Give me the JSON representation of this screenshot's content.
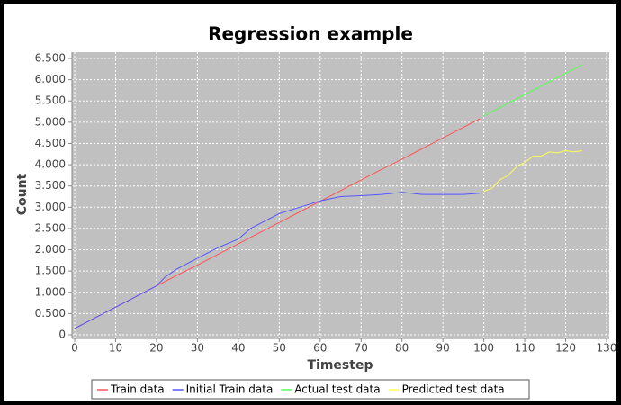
{
  "chart_data": {
    "type": "line",
    "title": "Regression example",
    "x_label": "Timestep",
    "y_label": "Count",
    "xlim": [
      0,
      130
    ],
    "xticks": [
      0,
      10,
      20,
      30,
      40,
      50,
      60,
      70,
      80,
      90,
      100,
      110,
      120,
      130
    ],
    "ylim": [
      0,
      6.5
    ],
    "yticks": [
      {
        "value": 0,
        "label": "0"
      },
      {
        "value": 0.5,
        "label": "0.500"
      },
      {
        "value": 1,
        "label": "1.000"
      },
      {
        "value": 1.5,
        "label": "1.500"
      },
      {
        "value": 2,
        "label": "2.000"
      },
      {
        "value": 2.5,
        "label": "2.500"
      },
      {
        "value": 3,
        "label": "3.000"
      },
      {
        "value": 3.5,
        "label": "3.500"
      },
      {
        "value": 4,
        "label": "4.000"
      },
      {
        "value": 4.5,
        "label": "4.500"
      },
      {
        "value": 5,
        "label": "5.000"
      },
      {
        "value": 5.5,
        "label": "5.500"
      },
      {
        "value": 6,
        "label": "6.000"
      },
      {
        "value": 6.5,
        "label": "6.500"
      }
    ],
    "grid": true,
    "series": [
      {
        "name": "Train data",
        "color": "#ff5555",
        "x": [
          0,
          5,
          10,
          15,
          20,
          25,
          30,
          35,
          40,
          45,
          50,
          55,
          60,
          65,
          70,
          75,
          80,
          85,
          90,
          95,
          99
        ],
        "values": [
          0.15,
          0.4,
          0.65,
          0.9,
          1.15,
          1.4,
          1.64,
          1.89,
          2.14,
          2.39,
          2.64,
          2.89,
          3.14,
          3.39,
          3.64,
          3.89,
          4.13,
          4.38,
          4.63,
          4.88,
          5.08
        ]
      },
      {
        "name": "Initial Train data",
        "color": "#5555ff",
        "x": [
          0,
          5,
          10,
          15,
          20,
          22,
          25,
          30,
          35,
          40,
          43,
          45,
          50,
          55,
          60,
          65,
          70,
          75,
          80,
          85,
          90,
          95,
          99
        ],
        "values": [
          0.15,
          0.4,
          0.65,
          0.9,
          1.15,
          1.35,
          1.55,
          1.8,
          2.05,
          2.25,
          2.5,
          2.6,
          2.85,
          3.0,
          3.15,
          3.25,
          3.27,
          3.3,
          3.35,
          3.3,
          3.3,
          3.3,
          3.33
        ]
      },
      {
        "name": "Actual test data",
        "color": "#55ff55",
        "x": [
          100,
          104,
          108,
          112,
          116,
          120,
          124
        ],
        "values": [
          5.15,
          5.35,
          5.55,
          5.75,
          5.95,
          6.15,
          6.35
        ]
      },
      {
        "name": "Predicted test data",
        "color": "#ffff55",
        "x": [
          100,
          102,
          104,
          106,
          108,
          110,
          112,
          114,
          116,
          118,
          120,
          122,
          124
        ],
        "values": [
          3.37,
          3.45,
          3.65,
          3.75,
          3.95,
          4.05,
          4.2,
          4.2,
          4.3,
          4.28,
          4.33,
          4.3,
          4.33
        ]
      }
    ]
  }
}
